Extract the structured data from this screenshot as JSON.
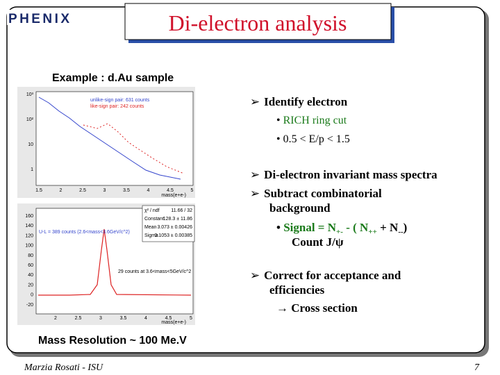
{
  "header": {
    "logo": "PHENIX",
    "title": "Di-electron analysis"
  },
  "subtitle": "Example : d.Au sample",
  "plots": [
    {
      "legend": [
        "unlike-sign pair: 631 counts",
        "like-sign pair: 242 counts"
      ],
      "xlabel": "mass(e+e-)",
      "xticks": [
        "1.5",
        "2",
        "2.5",
        "3",
        "3.5",
        "4",
        "4.5",
        "5"
      ],
      "yticks": [
        "10³",
        "10²",
        "10",
        "1"
      ]
    },
    {
      "stats": [
        [
          "χ² / ndf",
          "11.66 / 32"
        ],
        [
          "Constant",
          "128.3 ± 11.86"
        ],
        [
          "Mean",
          "3.073 ± 0.00426"
        ],
        [
          "Sigma",
          "0.1053 ± 0.00385"
        ]
      ],
      "annotations": [
        "U-L = 389 counts (2.6<mass<3.6GeV/c^2)",
        "29 counts at 3.6<mass<5GeV/c^2"
      ],
      "xlabel": "mass(e+e-)",
      "xticks": [
        "2",
        "2.5",
        "3",
        "3.5",
        "4",
        "4.5",
        "5"
      ],
      "yticks": [
        "160",
        "140",
        "120",
        "100",
        "80",
        "60",
        "40",
        "20",
        "0",
        "-20"
      ]
    }
  ],
  "bullets": {
    "identify": {
      "text": "Identify electron",
      "items": [
        "RICH ring cut",
        "0.5 < E/p < 1.5"
      ]
    },
    "spectra": "Di-electron invariant mass spectra",
    "subtract": {
      "lines": [
        "Subtract combinatorial",
        "background"
      ],
      "signal": [
        "Signal = N",
        "+-",
        " - ( N",
        "++",
        " + N",
        "--",
        ")"
      ],
      "count": "Count J/ψ"
    },
    "correct": {
      "lines": [
        "Correct for acceptance and",
        "efficiencies"
      ],
      "result": "→ Cross section"
    }
  },
  "footer": {
    "resolution": "Mass Resolution ~ 100 Me.V",
    "author": "Marzia Rosati - ISU",
    "page": "7"
  }
}
